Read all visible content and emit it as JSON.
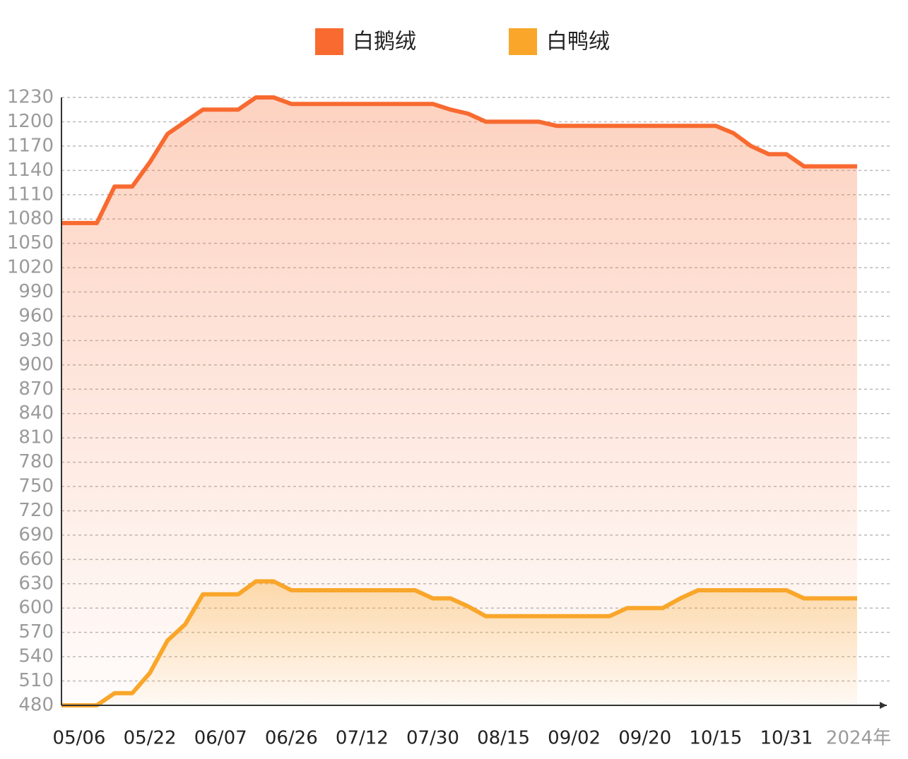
{
  "chart_data": {
    "type": "line",
    "categories": [
      null,
      "05/06",
      null,
      null,
      null,
      "05/22",
      null,
      null,
      null,
      "06/07",
      null,
      null,
      null,
      "06/26",
      null,
      null,
      null,
      "07/12",
      null,
      null,
      null,
      "07/30",
      null,
      null,
      null,
      "08/15",
      null,
      null,
      null,
      "09/02",
      null,
      null,
      null,
      "09/20",
      null,
      null,
      null,
      "10/15",
      null,
      null,
      null,
      "10/31",
      null,
      null,
      null,
      null
    ],
    "x_unit": "2024年",
    "series": [
      {
        "name": "白鹅绒",
        "color": "#f86a30",
        "values": [
          1075,
          1075,
          1075,
          1120,
          1120,
          1150,
          1185,
          1200,
          1215,
          1215,
          1215,
          1230,
          1230,
          1222,
          1222,
          1222,
          1222,
          1222,
          1222,
          1222,
          1222,
          1222,
          1215,
          1210,
          1200,
          1200,
          1200,
          1200,
          1195,
          1195,
          1195,
          1195,
          1195,
          1195,
          1195,
          1195,
          1195,
          1195,
          1186,
          1170,
          1160,
          1160,
          1145,
          1145,
          1145,
          1145
        ]
      },
      {
        "name": "白鸭绒",
        "color": "#f9a62a",
        "values": [
          480,
          480,
          480,
          495,
          495,
          520,
          560,
          580,
          617,
          617,
          617,
          633,
          633,
          622,
          622,
          622,
          622,
          622,
          622,
          622,
          622,
          612,
          612,
          602,
          590,
          590,
          590,
          590,
          590,
          590,
          590,
          590,
          600,
          600,
          600,
          612,
          622,
          622,
          622,
          622,
          622,
          622,
          612,
          612,
          612,
          612
        ]
      }
    ],
    "ylim": [
      480,
      1230
    ],
    "yticks": [
      480,
      510,
      540,
      570,
      600,
      630,
      660,
      690,
      720,
      750,
      780,
      810,
      840,
      870,
      900,
      930,
      960,
      990,
      1020,
      1050,
      1080,
      1110,
      1140,
      1170,
      1200,
      1230
    ],
    "grid": true,
    "legend": "top"
  }
}
